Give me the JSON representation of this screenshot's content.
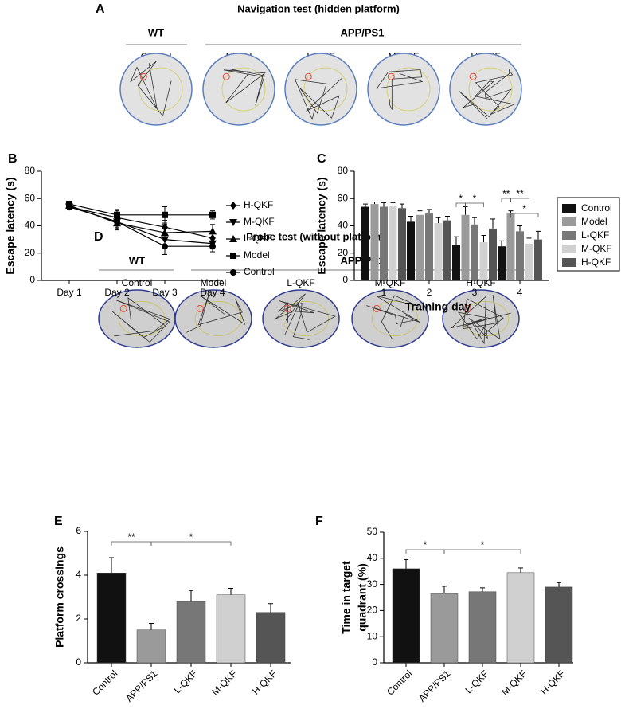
{
  "panels": [
    {
      "letter": "A",
      "title": "Navigation test (hidden platform)",
      "groups": [
        "WT",
        "APP/PS1"
      ],
      "labels": [
        "Control",
        "Model",
        "L-QKF",
        "M-QKF",
        "H-QKF"
      ]
    },
    {
      "letter": "D",
      "title": "Probe test (without platform)",
      "groups": [
        "WT",
        "APP/PS1"
      ],
      "labels": [
        "Control",
        "Model",
        "L-QKF",
        "M-QKF",
        "H-QKF"
      ]
    }
  ],
  "chart_data": [
    {
      "type": "line",
      "panel": "B",
      "ylabel": "Escape latency (s)",
      "categories": [
        "Day 1",
        "Day 2",
        "Day 3",
        "Day 4"
      ],
      "ylim": [
        0,
        80
      ],
      "yticks": [
        0,
        20,
        40,
        60,
        80
      ],
      "series": [
        {
          "name": "H-QKF",
          "color": "#000000",
          "marker": "diamond",
          "values": [
            54,
            46,
            39,
            31
          ],
          "errors": [
            2,
            5,
            5,
            4
          ]
        },
        {
          "name": "M-QKF",
          "color": "#000000",
          "marker": "triangle-down",
          "values": [
            54,
            43,
            30,
            27
          ],
          "errors": [
            2,
            5,
            5,
            4
          ]
        },
        {
          "name": "L-QKF",
          "color": "#000000",
          "marker": "triangle",
          "values": [
            55,
            42,
            35,
            36
          ],
          "errors": [
            2,
            5,
            6,
            5
          ]
        },
        {
          "name": "Model",
          "color": "#000000",
          "marker": "square",
          "values": [
            56,
            48,
            48,
            48
          ],
          "errors": [
            2,
            4,
            6,
            3
          ]
        },
        {
          "name": "Control",
          "color": "#000000",
          "marker": "circle",
          "values": [
            54,
            43,
            25,
            25
          ],
          "errors": [
            2,
            4,
            6,
            4
          ]
        }
      ]
    },
    {
      "type": "bar",
      "panel": "C",
      "ylabel": "Escape latency (s)",
      "xlabel": "Training day",
      "categories": [
        "1",
        "2",
        "3",
        "4"
      ],
      "ylim": [
        0,
        80
      ],
      "yticks": [
        0,
        20,
        40,
        60,
        80
      ],
      "series": [
        {
          "name": "Control",
          "color": "#111111",
          "values": [
            54,
            43,
            26,
            25
          ],
          "errors": [
            2,
            4,
            6,
            4
          ]
        },
        {
          "name": "Model",
          "color": "#9a9a9a",
          "values": [
            56,
            48,
            48,
            49
          ],
          "errors": [
            1.5,
            3,
            6,
            2
          ]
        },
        {
          "name": "L-QKF",
          "color": "#777777",
          "values": [
            54,
            49,
            41,
            36
          ],
          "errors": [
            3,
            3,
            5,
            4
          ]
        },
        {
          "name": "M-QKF",
          "color": "#d0d0d0",
          "values": [
            55,
            42,
            28,
            27
          ],
          "errors": [
            2,
            4,
            5,
            4
          ]
        },
        {
          "name": "H-QKF",
          "color": "#555555",
          "values": [
            53,
            44,
            38,
            30
          ],
          "errors": [
            3,
            3,
            7,
            6
          ]
        }
      ],
      "annotations": [
        "*",
        "*",
        "**",
        "**",
        "*"
      ]
    },
    {
      "type": "bar",
      "panel": "E",
      "ylabel": "Platform crossings",
      "categories": [
        "Control",
        "APP/PS1",
        "L-QKF",
        "M-QKF",
        "H-QKF"
      ],
      "values": [
        4.1,
        1.5,
        2.8,
        3.1,
        2.3
      ],
      "errors": [
        0.7,
        0.3,
        0.5,
        0.3,
        0.4
      ],
      "colors": [
        "#111111",
        "#9a9a9a",
        "#777777",
        "#d0d0d0",
        "#555555"
      ],
      "ylim": [
        0,
        6
      ],
      "yticks": [
        0,
        2,
        4,
        6
      ],
      "annotations": [
        "**",
        "*"
      ]
    },
    {
      "type": "bar",
      "panel": "F",
      "ylabel": [
        "Time in target",
        "quadrant (%)"
      ],
      "categories": [
        "Control",
        "APP/PS1",
        "L-QKF",
        "M-QKF",
        "H-QKF"
      ],
      "values": [
        36,
        26.5,
        27.2,
        34.5,
        29
      ],
      "errors": [
        3.5,
        2.8,
        1.5,
        1.8,
        1.7
      ],
      "colors": [
        "#111111",
        "#9a9a9a",
        "#777777",
        "#d0d0d0",
        "#555555"
      ],
      "ylim": [
        0,
        50
      ],
      "yticks": [
        0,
        10,
        20,
        30,
        40,
        50
      ],
      "annotations": [
        "*",
        "*"
      ]
    }
  ]
}
